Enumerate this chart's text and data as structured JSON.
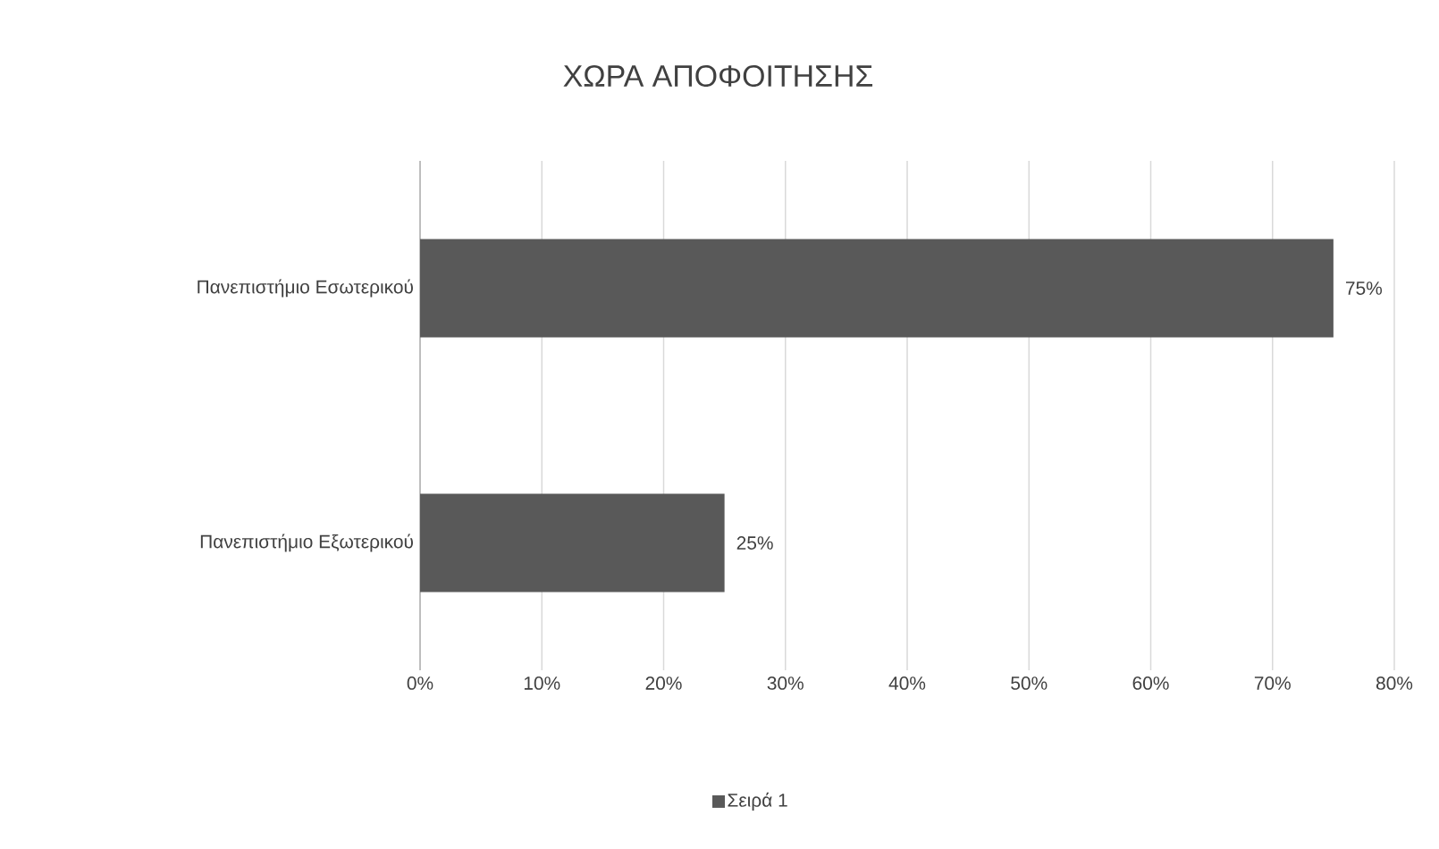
{
  "chart_data": {
    "type": "bar",
    "orientation": "horizontal",
    "title": "ΧΩΡΑ ΑΠΟΦΟΙΤΗΣΗΣ",
    "categories": [
      "Πανεπιστήμιο Εσωτερικού",
      "Πανεπιστήμιο Εξωτερικού"
    ],
    "series": [
      {
        "name": "Σειρά 1",
        "color": "#595959",
        "values": [
          75,
          25
        ],
        "value_labels": [
          "75%",
          "25%"
        ]
      }
    ],
    "xlim": [
      0,
      80
    ],
    "xticks": [
      {
        "value": 0,
        "label": "0%"
      },
      {
        "value": 10,
        "label": "10%"
      },
      {
        "value": 20,
        "label": "20%"
      },
      {
        "value": 30,
        "label": "30%"
      },
      {
        "value": 40,
        "label": "40%"
      },
      {
        "value": 50,
        "label": "50%"
      },
      {
        "value": 60,
        "label": "60%"
      },
      {
        "value": 70,
        "label": "70%"
      },
      {
        "value": 80,
        "label": "80%"
      }
    ],
    "grid": "x",
    "legend": "bottom"
  }
}
